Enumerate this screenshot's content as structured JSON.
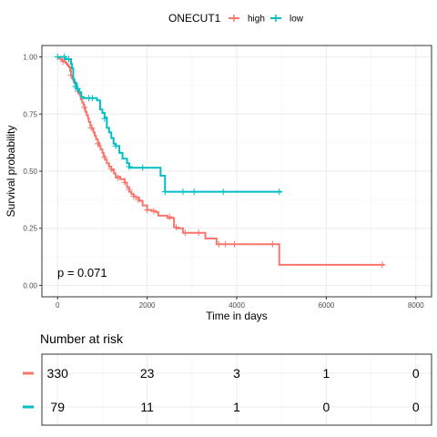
{
  "legend": {
    "title": "ONECUT1",
    "items": [
      {
        "label": "high",
        "color": "#F8766D"
      },
      {
        "label": "low",
        "color": "#00BFC4"
      }
    ]
  },
  "chart_data": {
    "type": "line",
    "step": true,
    "xlabel": "Time in days",
    "ylabel": "Survival probability",
    "xlim": [
      -350,
      8350
    ],
    "ylim": [
      -0.05,
      1.05
    ],
    "x_ticks": [
      0,
      2000,
      4000,
      6000,
      8000
    ],
    "y_ticks": [
      0.0,
      0.25,
      0.5,
      0.75,
      1.0
    ],
    "y_tick_labels": [
      "0.00",
      "0.25",
      "0.50",
      "0.75",
      "1.00"
    ],
    "grid": true,
    "legend_position": "top",
    "annotation": "p = 0.071",
    "series": [
      {
        "name": "high",
        "color": "#F8766D",
        "points": [
          [
            0,
            1.0
          ],
          [
            30,
            0.995
          ],
          [
            60,
            0.99
          ],
          [
            100,
            0.985
          ],
          [
            150,
            0.98
          ],
          [
            180,
            0.975
          ],
          [
            200,
            0.97
          ],
          [
            220,
            0.965
          ],
          [
            240,
            0.96
          ],
          [
            260,
            0.955
          ],
          [
            280,
            0.94
          ],
          [
            300,
            0.92
          ],
          [
            330,
            0.905
          ],
          [
            360,
            0.89
          ],
          [
            400,
            0.875
          ],
          [
            420,
            0.86
          ],
          [
            450,
            0.85
          ],
          [
            480,
            0.84
          ],
          [
            500,
            0.83
          ],
          [
            520,
            0.815
          ],
          [
            550,
            0.8
          ],
          [
            580,
            0.79
          ],
          [
            600,
            0.775
          ],
          [
            620,
            0.76
          ],
          [
            650,
            0.745
          ],
          [
            680,
            0.73
          ],
          [
            700,
            0.715
          ],
          [
            730,
            0.7
          ],
          [
            760,
            0.685
          ],
          [
            800,
            0.67
          ],
          [
            830,
            0.655
          ],
          [
            860,
            0.64
          ],
          [
            900,
            0.625
          ],
          [
            930,
            0.61
          ],
          [
            960,
            0.595
          ],
          [
            1000,
            0.58
          ],
          [
            1030,
            0.565
          ],
          [
            1060,
            0.55
          ],
          [
            1100,
            0.535
          ],
          [
            1150,
            0.52
          ],
          [
            1200,
            0.505
          ],
          [
            1260,
            0.49
          ],
          [
            1300,
            0.475
          ],
          [
            1400,
            0.465
          ],
          [
            1500,
            0.45
          ],
          [
            1550,
            0.43
          ],
          [
            1600,
            0.41
          ],
          [
            1650,
            0.4
          ],
          [
            1700,
            0.39
          ],
          [
            1750,
            0.385
          ],
          [
            1820,
            0.37
          ],
          [
            1900,
            0.35
          ],
          [
            2000,
            0.33
          ],
          [
            2100,
            0.325
          ],
          [
            2200,
            0.32
          ],
          [
            2250,
            0.305
          ],
          [
            2450,
            0.295
          ],
          [
            2600,
            0.255
          ],
          [
            2650,
            0.25
          ],
          [
            2800,
            0.23
          ],
          [
            3300,
            0.205
          ],
          [
            3550,
            0.18
          ],
          [
            4950,
            0.18
          ],
          [
            4950,
            0.09
          ],
          [
            7300,
            0.09
          ]
        ],
        "censored": [
          [
            120,
            0.98
          ],
          [
            300,
            0.92
          ],
          [
            450,
            0.85
          ],
          [
            600,
            0.78
          ],
          [
            750,
            0.69
          ],
          [
            900,
            0.62
          ],
          [
            1050,
            0.56
          ],
          [
            1200,
            0.51
          ],
          [
            1350,
            0.47
          ],
          [
            1500,
            0.45
          ],
          [
            1600,
            0.42
          ],
          [
            1700,
            0.39
          ],
          [
            1800,
            0.375
          ],
          [
            2000,
            0.33
          ],
          [
            2150,
            0.325
          ],
          [
            2500,
            0.3
          ],
          [
            2650,
            0.255
          ],
          [
            2850,
            0.23
          ],
          [
            3150,
            0.23
          ],
          [
            3600,
            0.18
          ],
          [
            3750,
            0.18
          ],
          [
            3950,
            0.18
          ],
          [
            4800,
            0.18
          ],
          [
            7250,
            0.09
          ]
        ]
      },
      {
        "name": "low",
        "color": "#00BFC4",
        "points": [
          [
            0,
            1.0
          ],
          [
            180,
            0.99
          ],
          [
            300,
            0.97
          ],
          [
            320,
            0.95
          ],
          [
            350,
            0.9
          ],
          [
            380,
            0.885
          ],
          [
            430,
            0.86
          ],
          [
            480,
            0.845
          ],
          [
            530,
            0.825
          ],
          [
            580,
            0.82
          ],
          [
            800,
            0.82
          ],
          [
            880,
            0.81
          ],
          [
            950,
            0.77
          ],
          [
            1000,
            0.755
          ],
          [
            1050,
            0.735
          ],
          [
            1100,
            0.69
          ],
          [
            1150,
            0.67
          ],
          [
            1200,
            0.645
          ],
          [
            1250,
            0.62
          ],
          [
            1300,
            0.61
          ],
          [
            1380,
            0.58
          ],
          [
            1450,
            0.555
          ],
          [
            1550,
            0.535
          ],
          [
            1600,
            0.515
          ],
          [
            2300,
            0.515
          ],
          [
            2300,
            0.48
          ],
          [
            2400,
            0.48
          ],
          [
            2400,
            0.41
          ],
          [
            5000,
            0.41
          ]
        ],
        "censored": [
          [
            0,
            1.0
          ],
          [
            150,
            1.0
          ],
          [
            250,
            0.99
          ],
          [
            400,
            0.87
          ],
          [
            450,
            0.86
          ],
          [
            700,
            0.82
          ],
          [
            780,
            0.82
          ],
          [
            1050,
            0.73
          ],
          [
            1300,
            0.61
          ],
          [
            1600,
            0.52
          ],
          [
            1900,
            0.515
          ],
          [
            2400,
            0.41
          ],
          [
            2800,
            0.41
          ],
          [
            3050,
            0.41
          ],
          [
            3700,
            0.41
          ],
          [
            4950,
            0.41
          ]
        ]
      }
    ]
  },
  "risk_table": {
    "title": "Number at risk",
    "rows": [
      {
        "group": "high",
        "color": "#F8766D",
        "values": [
          "330",
          "23",
          "3",
          "1",
          "0"
        ]
      },
      {
        "group": "low",
        "color": "#00BFC4",
        "values": [
          "79",
          "11",
          "1",
          "0",
          "0"
        ]
      }
    ]
  }
}
